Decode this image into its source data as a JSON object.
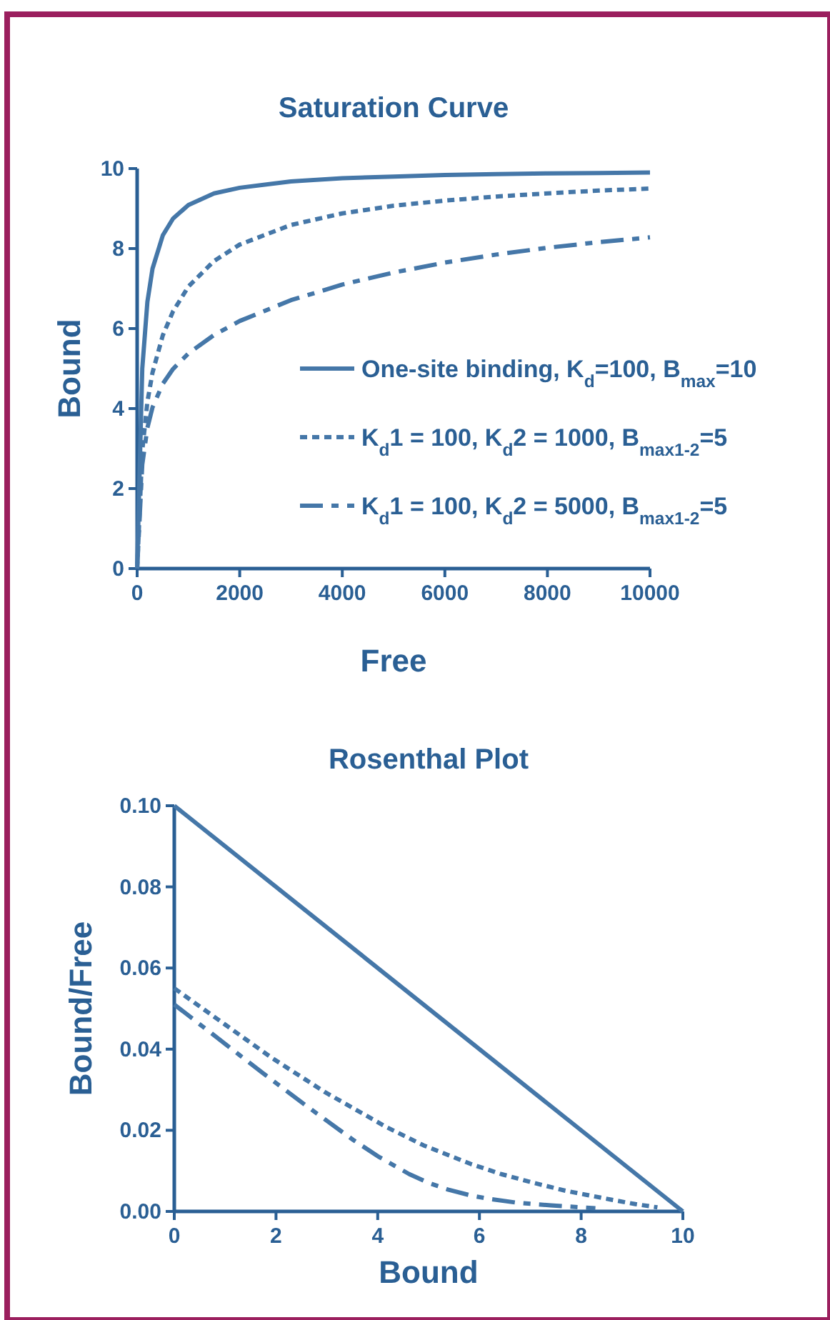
{
  "chart_data": [
    {
      "type": "line",
      "title": "Saturation Curve",
      "xlabel": "Free",
      "ylabel": "Bound",
      "xlim": [
        0,
        10000
      ],
      "xticks": [
        0,
        2000,
        4000,
        6000,
        8000,
        10000
      ],
      "ylim": [
        0,
        10
      ],
      "yticks": [
        0,
        2,
        4,
        6,
        8,
        10
      ],
      "grid": false,
      "legend": "bottom right",
      "marker": "none",
      "series": [
        {
          "name": "One-site binding, K$_{d}$=100, B$_{max}$=10",
          "color": "#4577a8",
          "line_style": "solid",
          "x": [
            0,
            100,
            200,
            300,
            500,
            700,
            1000,
            1500,
            2000,
            3000,
            4000,
            5000,
            6000,
            7000,
            8000,
            9000,
            10000
          ],
          "values": [
            0,
            5,
            6.67,
            7.5,
            8.33,
            8.75,
            9.09,
            9.38,
            9.52,
            9.68,
            9.76,
            9.8,
            9.84,
            9.86,
            9.88,
            9.89,
            9.9
          ]
        },
        {
          "name": "K$_{d}$1 = 100, K$_{d}$2 = 1000, B$_{max1-2}$=5",
          "color": "#4577a8",
          "line_style": "dotted",
          "x": [
            0,
            100,
            200,
            300,
            500,
            700,
            1000,
            1500,
            2000,
            3000,
            4000,
            5000,
            6000,
            7000,
            8000,
            9000,
            10000
          ],
          "values": [
            0,
            2.95,
            4.17,
            4.9,
            5.83,
            6.43,
            7.05,
            7.69,
            8.1,
            8.59,
            8.88,
            9.07,
            9.2,
            9.3,
            9.38,
            9.45,
            9.5
          ]
        },
        {
          "name": "K$_{d}$1 = 100, K$_{d}$2 = 5000, B$_{max1-2}$=5",
          "color": "#4577a8",
          "line_style": "dashed",
          "x": [
            0,
            100,
            200,
            300,
            500,
            700,
            1000,
            1500,
            2000,
            3000,
            4000,
            5000,
            6000,
            7000,
            8000,
            9000,
            10000
          ],
          "values": [
            0,
            2.6,
            3.52,
            4.03,
            4.62,
            4.99,
            5.38,
            5.84,
            6.19,
            6.71,
            7.1,
            7.4,
            7.65,
            7.85,
            8.02,
            8.16,
            8.28
          ]
        }
      ]
    },
    {
      "type": "line",
      "title": "Rosenthal Plot",
      "xlabel": "Bound",
      "ylabel": "Bound/Free",
      "xlim": [
        0,
        10
      ],
      "xticks": [
        0,
        2,
        4,
        6,
        8,
        10
      ],
      "ylim": [
        0,
        0.1
      ],
      "yticks": [
        {
          "value": 0,
          "label": "0.00"
        },
        {
          "value": 0.02,
          "label": "0.02"
        },
        {
          "value": 0.04,
          "label": "0.04"
        },
        {
          "value": 0.06,
          "label": "0.06"
        },
        {
          "value": 0.08,
          "label": "0.08"
        },
        {
          "value": 0.1,
          "label": "0.10"
        }
      ],
      "grid": false,
      "legend": false,
      "marker": "none",
      "series": [
        {
          "color": "#4577a8",
          "line_style": "solid",
          "x": [
            0,
            10
          ],
          "values": [
            0.1,
            0
          ]
        },
        {
          "color": "#4577a8",
          "line_style": "dotted",
          "x": [
            0,
            1.9,
            2.95,
            4.17,
            4.9,
            5.83,
            6.43,
            7.05,
            7.69,
            8.1,
            8.59,
            9.07,
            9.5
          ],
          "values": [
            0.055,
            0.038,
            0.0295,
            0.0208,
            0.0163,
            0.0117,
            0.0092,
            0.0071,
            0.0051,
            0.0041,
            0.0029,
            0.0018,
            0.001
          ]
        },
        {
          "color": "#4577a8",
          "line_style": "dashed",
          "x": [
            0,
            1.72,
            2.6,
            3.52,
            4.03,
            4.62,
            4.99,
            5.38,
            5.84,
            6.19,
            6.71,
            7.1,
            7.4,
            8.02,
            8.28
          ],
          "values": [
            0.051,
            0.0343,
            0.026,
            0.0176,
            0.0134,
            0.0092,
            0.0071,
            0.0054,
            0.0039,
            0.0031,
            0.0022,
            0.0018,
            0.0015,
            0.001,
            0.0008
          ]
        }
      ]
    }
  ]
}
